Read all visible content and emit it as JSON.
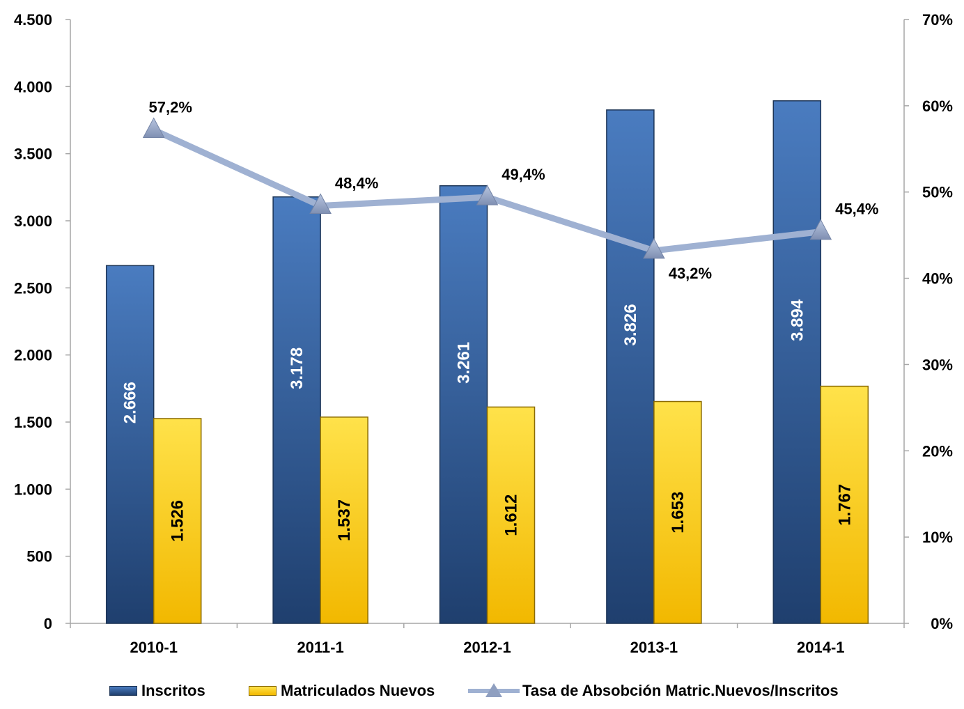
{
  "chart_data": {
    "type": "bar",
    "categories": [
      "2010-1",
      "2011-1",
      "2012-1",
      "2013-1",
      "2014-1"
    ],
    "series": [
      {
        "name": "Inscritos",
        "type": "bar",
        "axis": "left",
        "color": "#2e5a97",
        "values": [
          2666,
          3178,
          3261,
          3826,
          3894
        ],
        "labels": [
          "2.666",
          "3.178",
          "3.261",
          "3.826",
          "3.894"
        ]
      },
      {
        "name": "Matriculados Nuevos",
        "type": "bar",
        "axis": "left",
        "color": "#ffcc00",
        "values": [
          1526,
          1537,
          1612,
          1653,
          1767
        ],
        "labels": [
          "1.526",
          "1.537",
          "1.612",
          "1.653",
          "1.767"
        ]
      },
      {
        "name": "Tasa de Absobción Matric.Nuevos/Inscritos",
        "type": "line",
        "axis": "right",
        "color": "#9fb1d2",
        "marker": "triangle",
        "values": [
          57.2,
          48.4,
          49.4,
          43.2,
          45.4
        ],
        "labels": [
          "57,2%",
          "48,4%",
          "49,4%",
          "43,2%",
          "45,4%"
        ]
      }
    ],
    "y_left": {
      "range": [
        0,
        4500
      ],
      "ticks": [
        0,
        500,
        1000,
        1500,
        2000,
        2500,
        3000,
        3500,
        4000,
        4500
      ],
      "tick_labels": [
        "0",
        "500",
        "1.000",
        "1.500",
        "2.000",
        "2.500",
        "3.000",
        "3.500",
        "4.000",
        "4.500"
      ]
    },
    "y_right": {
      "range": [
        0,
        70
      ],
      "ticks": [
        0,
        10,
        20,
        30,
        40,
        50,
        60,
        70
      ],
      "tick_labels": [
        "0%",
        "10%",
        "20%",
        "30%",
        "40%",
        "50%",
        "60%",
        "70%"
      ]
    },
    "grid": false,
    "legend_position": "bottom"
  }
}
